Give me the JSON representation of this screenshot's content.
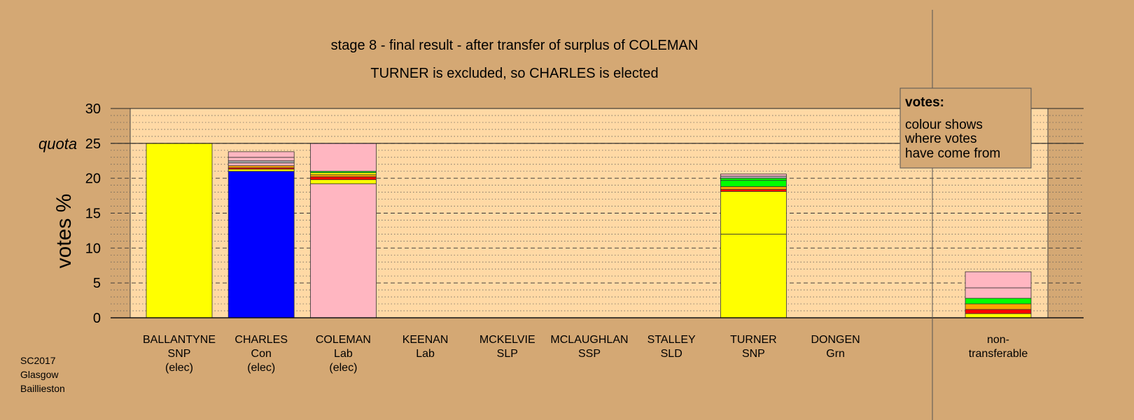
{
  "chart_data": {
    "type": "bar",
    "stacked": true,
    "title": "stage 8 - final result - after transfer of surplus of COLEMAN",
    "subtitle": "TURNER is excluded, so CHARLES is elected",
    "ylabel": "votes %",
    "ylim": [
      0,
      30
    ],
    "yticks": [
      0,
      5,
      10,
      15,
      20,
      25,
      30
    ],
    "quota": 25,
    "quota_label": "quota",
    "grid": true,
    "legend": {
      "position": "top-right",
      "title": "votes:",
      "lines": [
        "colour shows",
        "where votes",
        "have come from"
      ]
    },
    "categories": [
      {
        "lines": [
          "BALLANTYNE",
          "SNP",
          "(elec)"
        ],
        "segments": [
          {
            "value": 25,
            "color": "#ffff00"
          }
        ]
      },
      {
        "lines": [
          "CHARLES",
          "Con",
          "(elec)"
        ],
        "segments": [
          {
            "value": 21,
            "color": "#0000ff"
          },
          {
            "value": 0.3,
            "color": "#ffff00"
          },
          {
            "value": 0.2,
            "color": "#ff0000"
          },
          {
            "value": 0.3,
            "color": "#ffa500"
          },
          {
            "value": 0.4,
            "color": "#ffb6c1"
          },
          {
            "value": 0.3,
            "color": "#b0b0b0"
          },
          {
            "value": 0.5,
            "color": "#ffb6c1"
          },
          {
            "value": 0.8,
            "color": "#ffb6c1"
          }
        ]
      },
      {
        "lines": [
          "COLEMAN",
          "Lab",
          "(elec)"
        ],
        "segments": [
          {
            "value": 19.2,
            "color": "#ffb6c1"
          },
          {
            "value": 0.6,
            "color": "#ffff00"
          },
          {
            "value": 0.4,
            "color": "#ff0000"
          },
          {
            "value": 0.3,
            "color": "#ffa500"
          },
          {
            "value": 0.3,
            "color": "#ffff00"
          },
          {
            "value": 0.2,
            "color": "#00ff00"
          },
          {
            "value": 4.0,
            "color": "#ffb6c1"
          }
        ]
      },
      {
        "lines": [
          "KEENAN",
          "Lab"
        ],
        "segments": []
      },
      {
        "lines": [
          "MCKELVIE",
          "SLP"
        ],
        "segments": []
      },
      {
        "lines": [
          "MCLAUGHLAN",
          "SSP"
        ],
        "segments": []
      },
      {
        "lines": [
          "STALLEY",
          "SLD"
        ],
        "segments": []
      },
      {
        "lines": [
          "TURNER",
          "SNP"
        ],
        "segments": [
          {
            "value": 12,
            "color": "#ffff00"
          },
          {
            "value": 6.1,
            "color": "#ffff00"
          },
          {
            "value": 0.3,
            "color": "#ff0000"
          },
          {
            "value": 0.4,
            "color": "#ffa500"
          },
          {
            "value": 0.9,
            "color": "#00ff00"
          },
          {
            "value": 0.3,
            "color": "#00ff00"
          },
          {
            "value": 0.3,
            "color": "#b0b0b0"
          },
          {
            "value": 0.3,
            "color": "#ffb6c1"
          }
        ]
      },
      {
        "lines": [
          "DONGEN",
          "Grn"
        ],
        "segments": []
      }
    ],
    "nontransferable": {
      "lines": [
        "non-",
        "transferable"
      ],
      "segments": [
        {
          "value": 0.6,
          "color": "#ffff00"
        },
        {
          "value": 0.6,
          "color": "#ff0000"
        },
        {
          "value": 0.8,
          "color": "#ffa500"
        },
        {
          "value": 0.8,
          "color": "#00ff00"
        },
        {
          "value": 1.5,
          "color": "#ffb6c1"
        },
        {
          "value": 2.3,
          "color": "#ffb6c1"
        }
      ]
    }
  },
  "footer": {
    "lines": [
      "SC2017",
      "Glasgow",
      "Baillieston"
    ]
  },
  "colors": {
    "background": "#d4a874",
    "plot_background": "#ffd9a5"
  }
}
